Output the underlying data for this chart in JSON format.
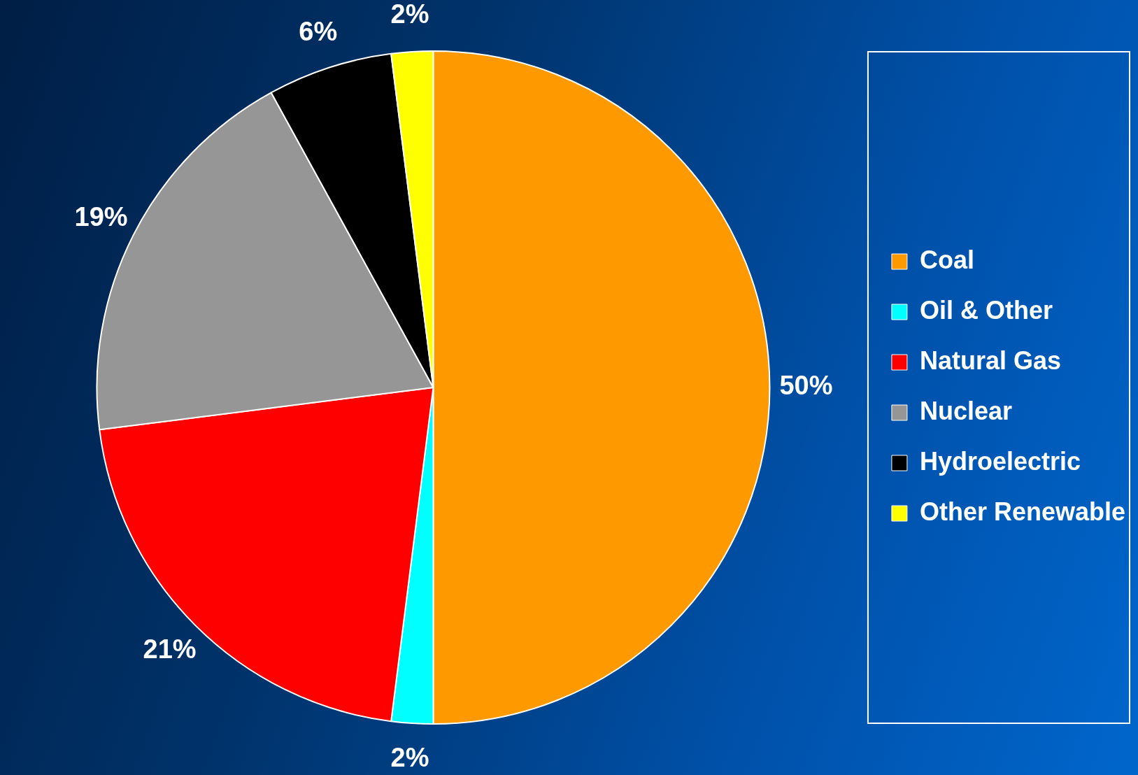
{
  "chart_data": {
    "type": "pie",
    "categories": [
      "Coal",
      "Oil & Other",
      "Natural Gas",
      "Nuclear",
      "Hydroelectric",
      "Other Renewable"
    ],
    "values": [
      50,
      2,
      21,
      19,
      6,
      2
    ],
    "colors": [
      "#ff9900",
      "#00ffff",
      "#ff0000",
      "#969696",
      "#000000",
      "#ffff00"
    ],
    "value_labels": [
      "50%",
      "2%",
      "21%",
      "19%",
      "6%",
      "2%"
    ],
    "legend": "right"
  }
}
